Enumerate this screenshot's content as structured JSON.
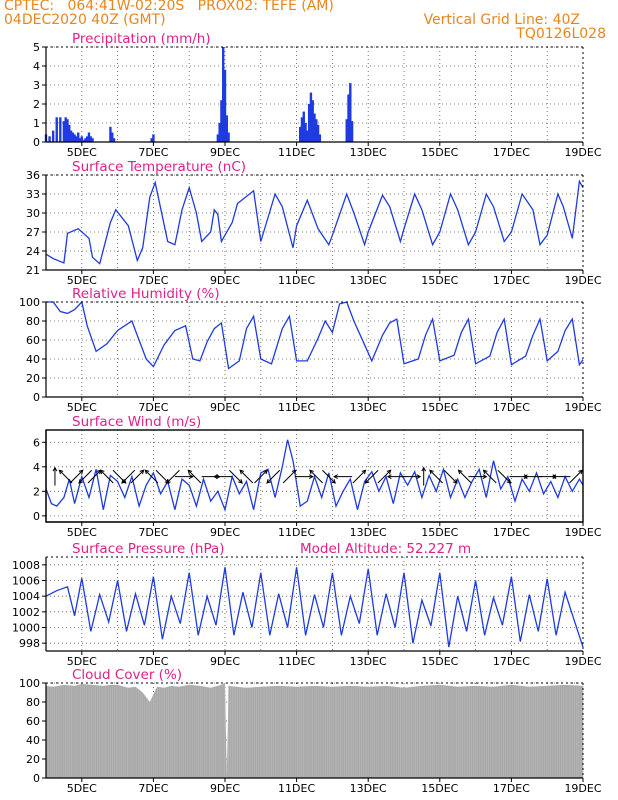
{
  "header": {
    "line1": "CPTEC:   064:41W-02:20S   PROX02: TEFE (AM)",
    "line2": "04DEC2020 40Z (GMT)",
    "grid_note": "Vertical Grid Line: 40Z",
    "code": "TQ0126L028"
  },
  "colors": {
    "header": "#e8861c",
    "title": "#e0218a",
    "line": "#1f3be0",
    "cloud": "#a9a9a9"
  },
  "chart_data": [
    {
      "type": "bar",
      "title": "Precipitation (mm/h)",
      "ylim": [
        0,
        5
      ],
      "yticks": [
        0,
        1,
        2,
        3,
        4,
        5
      ],
      "xticks": [
        "5DEC",
        "7DEC",
        "9DEC",
        "11DEC",
        "13DEC",
        "15DEC",
        "17DEC",
        "19DEC"
      ],
      "grid": true,
      "x": [
        4.0,
        4.1,
        4.2,
        4.3,
        4.4,
        4.5,
        4.55,
        4.6,
        4.65,
        4.7,
        4.75,
        4.8,
        4.85,
        4.9,
        4.95,
        5.0,
        5.05,
        5.1,
        5.15,
        5.2,
        5.25,
        5.3,
        5.8,
        5.85,
        5.9,
        6.95,
        7.0,
        8.8,
        8.85,
        8.9,
        8.95,
        9.0,
        9.05,
        9.1,
        11.1,
        11.15,
        11.2,
        11.25,
        11.3,
        11.35,
        11.4,
        11.45,
        11.5,
        11.55,
        11.6,
        11.65,
        12.4,
        12.45,
        12.5,
        12.55
      ],
      "values": [
        0.4,
        0.3,
        0.6,
        1.3,
        1.3,
        1.1,
        1.3,
        1.2,
        0.9,
        0.6,
        0.5,
        0.4,
        0.3,
        0.5,
        0.2,
        0.3,
        0.1,
        0.2,
        0.3,
        0.5,
        0.3,
        0.2,
        0.8,
        0.5,
        0.2,
        0.2,
        0.4,
        0.4,
        1.0,
        2.2,
        5.0,
        3.8,
        1.4,
        0.5,
        0.8,
        1.3,
        1.6,
        1.0,
        0.6,
        2.0,
        2.6,
        2.2,
        1.5,
        1.2,
        0.9,
        0.4,
        1.2,
        2.5,
        3.1,
        1.1
      ]
    },
    {
      "type": "line",
      "title": "Surface Temperature (nC)",
      "ylim": [
        21,
        36
      ],
      "yticks": [
        21,
        24,
        27,
        30,
        33,
        36
      ],
      "xticks": [
        "5DEC",
        "7DEC",
        "9DEC",
        "11DEC",
        "13DEC",
        "15DEC",
        "17DEC",
        "19DEC"
      ],
      "grid": true,
      "x": [
        4.0,
        4.2,
        4.5,
        4.6,
        4.9,
        5.2,
        5.3,
        5.5,
        5.8,
        5.95,
        6.3,
        6.55,
        6.7,
        6.9,
        7.05,
        7.4,
        7.6,
        7.8,
        8.0,
        8.2,
        8.35,
        8.6,
        8.7,
        8.8,
        8.9,
        9.2,
        9.35,
        9.8,
        10.0,
        10.4,
        10.6,
        10.9,
        11.0,
        11.3,
        11.6,
        11.9,
        12.0,
        12.4,
        12.6,
        12.9,
        13.0,
        13.4,
        13.6,
        13.9,
        14.0,
        14.3,
        14.5,
        14.8,
        15.0,
        15.3,
        15.5,
        15.8,
        16.0,
        16.3,
        16.5,
        16.8,
        17.0,
        17.3,
        17.6,
        17.8,
        18.0,
        18.3,
        18.45,
        18.7,
        18.9,
        19.0
      ],
      "values": [
        23.5,
        22.8,
        22.1,
        26.8,
        27.5,
        26.0,
        23.0,
        22.0,
        28.5,
        30.5,
        28.0,
        22.5,
        24.5,
        32.5,
        34.8,
        25.5,
        25.0,
        30.5,
        34.0,
        30.0,
        25.5,
        27.0,
        30.5,
        29.8,
        25.5,
        28.5,
        31.5,
        33.5,
        25.5,
        33.0,
        31.0,
        24.5,
        28.0,
        32.0,
        27.5,
        25.0,
        26.5,
        33.0,
        30.0,
        25.0,
        27.0,
        32.8,
        31.0,
        25.5,
        27.5,
        33.0,
        30.5,
        25.0,
        27.0,
        33.0,
        30.5,
        25.0,
        27.0,
        33.0,
        31.0,
        25.5,
        27.0,
        33.0,
        30.5,
        25.0,
        26.5,
        33.0,
        31.0,
        26.0,
        35.0,
        34.0
      ],
      "ylabel": ""
    },
    {
      "type": "line",
      "title": "Relative Humidity (%)",
      "ylim": [
        0,
        100
      ],
      "yticks": [
        0,
        20,
        40,
        60,
        80,
        100
      ],
      "xticks": [
        "5DEC",
        "7DEC",
        "9DEC",
        "11DEC",
        "13DEC",
        "15DEC",
        "17DEC",
        "19DEC"
      ],
      "grid": true,
      "x": [
        4.0,
        4.2,
        4.4,
        4.6,
        4.8,
        5.0,
        5.15,
        5.4,
        5.7,
        6.0,
        6.4,
        6.8,
        7.0,
        7.3,
        7.6,
        7.9,
        8.1,
        8.3,
        8.5,
        8.7,
        8.9,
        9.1,
        9.4,
        9.6,
        9.8,
        10.0,
        10.3,
        10.6,
        10.8,
        11.0,
        11.3,
        11.6,
        11.8,
        12.0,
        12.2,
        12.4,
        12.6,
        12.9,
        13.1,
        13.4,
        13.6,
        13.8,
        14.0,
        14.4,
        14.6,
        14.8,
        15.0,
        15.4,
        15.6,
        15.8,
        16.0,
        16.4,
        16.6,
        16.8,
        17.0,
        17.4,
        17.6,
        17.8,
        18.0,
        18.3,
        18.5,
        18.7,
        18.9,
        19.0
      ],
      "values": [
        100,
        100,
        90,
        88,
        92,
        100,
        75,
        48,
        56,
        70,
        80,
        40,
        32,
        55,
        70,
        75,
        40,
        38,
        58,
        72,
        78,
        30,
        38,
        72,
        85,
        40,
        35,
        72,
        85,
        38,
        38,
        62,
        80,
        68,
        98,
        100,
        80,
        55,
        38,
        65,
        78,
        82,
        35,
        40,
        65,
        82,
        38,
        44,
        68,
        82,
        35,
        43,
        68,
        82,
        34,
        43,
        65,
        82,
        38,
        48,
        70,
        82,
        34,
        39
      ],
      "ylabel": ""
    },
    {
      "type": "line",
      "title": "Surface Wind (m/s)",
      "ylim": [
        -0.5,
        7
      ],
      "yticks": [
        0,
        2,
        4,
        6
      ],
      "xticks": [
        "5DEC",
        "7DEC",
        "9DEC",
        "11DEC",
        "13DEC",
        "15DEC",
        "17DEC",
        "19DEC"
      ],
      "grid": true,
      "x": [
        4.0,
        4.15,
        4.3,
        4.5,
        4.65,
        4.8,
        5.0,
        5.2,
        5.4,
        5.6,
        5.8,
        6.0,
        6.2,
        6.4,
        6.6,
        6.8,
        7.0,
        7.2,
        7.4,
        7.6,
        7.8,
        8.0,
        8.2,
        8.4,
        8.6,
        8.8,
        9.0,
        9.2,
        9.4,
        9.6,
        9.8,
        10.0,
        10.2,
        10.4,
        10.6,
        10.75,
        10.9,
        11.1,
        11.3,
        11.5,
        11.7,
        11.9,
        12.1,
        12.3,
        12.5,
        12.7,
        12.9,
        13.1,
        13.3,
        13.5,
        13.7,
        13.9,
        14.1,
        14.3,
        14.5,
        14.7,
        14.9,
        15.1,
        15.3,
        15.5,
        15.7,
        15.9,
        16.1,
        16.3,
        16.5,
        16.7,
        16.9,
        17.1,
        17.3,
        17.5,
        17.7,
        17.9,
        18.1,
        18.3,
        18.5,
        18.7,
        18.9,
        19.0
      ],
      "values": [
        2.2,
        1.0,
        0.8,
        1.5,
        3.0,
        1.0,
        3.2,
        1.5,
        3.8,
        0.5,
        3.3,
        2.8,
        1.5,
        3.2,
        0.8,
        2.5,
        3.5,
        1.8,
        2.8,
        0.5,
        3.0,
        2.5,
        0.8,
        3.0,
        1.2,
        2.0,
        0.5,
        3.2,
        1.8,
        2.8,
        0.5,
        3.5,
        3.8,
        1.5,
        4.0,
        6.2,
        4.5,
        0.8,
        1.2,
        3.2,
        1.5,
        3.5,
        0.8,
        2.0,
        3.0,
        0.5,
        2.8,
        3.6,
        2.0,
        3.2,
        1.0,
        3.5,
        2.5,
        3.6,
        1.5,
        3.3,
        2.0,
        3.8,
        1.5,
        3.0,
        1.5,
        2.8,
        3.8,
        1.5,
        4.5,
        2.2,
        3.2,
        1.2,
        3.0,
        2.0,
        3.5,
        1.8,
        2.8,
        1.5,
        3.2,
        2.0,
        3.0,
        2.5
      ],
      "arrows": [
        [
          4.25,
          0,
          1
        ],
        [
          4.55,
          -1,
          1
        ],
        [
          4.85,
          1,
          1
        ],
        [
          5.1,
          -1,
          -1
        ],
        [
          5.35,
          1,
          1
        ],
        [
          5.7,
          -1,
          1
        ],
        [
          6.05,
          1,
          -1
        ],
        [
          6.3,
          -1,
          -1
        ],
        [
          6.55,
          1,
          1
        ],
        [
          6.95,
          -1,
          1
        ],
        [
          7.25,
          1,
          -1
        ],
        [
          7.55,
          -1,
          -1
        ],
        [
          7.85,
          1,
          0
        ],
        [
          8.15,
          -1,
          1
        ],
        [
          8.6,
          1,
          0
        ],
        [
          8.95,
          -1,
          0
        ],
        [
          9.3,
          1,
          -1
        ],
        [
          9.6,
          -1,
          1
        ],
        [
          10.0,
          1,
          1
        ],
        [
          10.35,
          -1,
          -1
        ],
        [
          10.8,
          1,
          1
        ],
        [
          11.2,
          1,
          0
        ],
        [
          11.55,
          -1,
          1
        ],
        [
          11.9,
          1,
          -1
        ],
        [
          12.3,
          -1,
          0
        ],
        [
          12.75,
          1,
          1
        ],
        [
          13.1,
          -1,
          -1
        ],
        [
          13.45,
          1,
          1
        ],
        [
          13.8,
          -1,
          0
        ],
        [
          14.2,
          1,
          0
        ],
        [
          14.55,
          0,
          1
        ],
        [
          14.9,
          -1,
          1
        ],
        [
          15.3,
          1,
          -1
        ],
        [
          15.7,
          -1,
          1
        ],
        [
          16.05,
          1,
          0
        ],
        [
          16.4,
          -1,
          1
        ],
        [
          16.8,
          1,
          -1
        ],
        [
          17.2,
          1,
          0
        ],
        [
          17.6,
          -1,
          0
        ],
        [
          18.0,
          1,
          0
        ],
        [
          18.4,
          -1,
          0
        ],
        [
          18.8,
          1,
          1
        ]
      ],
      "ylabel": ""
    },
    {
      "type": "line",
      "title": "Surface Pressure (hPa)",
      "annotation": "Model Altitude: 52.227  m",
      "ylim": [
        997,
        1009
      ],
      "yticks": [
        998,
        1000,
        1002,
        1004,
        1006,
        1008
      ],
      "xticks": [
        "5DEC",
        "7DEC",
        "9DEC",
        "11DEC",
        "13DEC",
        "15DEC",
        "17DEC",
        "19DEC"
      ],
      "grid": true,
      "x": [
        4.0,
        4.3,
        4.6,
        4.8,
        5.0,
        5.25,
        5.5,
        5.75,
        6.0,
        6.25,
        6.5,
        6.75,
        7.0,
        7.25,
        7.5,
        7.75,
        8.0,
        8.25,
        8.5,
        8.75,
        9.0,
        9.25,
        9.5,
        9.75,
        10.0,
        10.25,
        10.5,
        10.75,
        11.0,
        11.25,
        11.5,
        11.75,
        12.0,
        12.25,
        12.5,
        12.75,
        13.0,
        13.25,
        13.5,
        13.75,
        14.0,
        14.25,
        14.5,
        14.75,
        15.0,
        15.25,
        15.5,
        15.75,
        16.0,
        16.25,
        16.5,
        16.75,
        17.0,
        17.25,
        17.5,
        17.75,
        18.0,
        18.25,
        18.5,
        18.75,
        19.0
      ],
      "values": [
        1004,
        1004.7,
        1005.2,
        1001.5,
        1006.3,
        999.5,
        1004.2,
        1000.7,
        1006,
        999.5,
        1004.3,
        1000.3,
        1006.5,
        998.5,
        1004,
        1000.5,
        1007,
        999,
        1004,
        1000.3,
        1007.7,
        999,
        1004.5,
        1000,
        1007,
        999,
        1004.3,
        1000,
        1007.7,
        999,
        1004.2,
        1000,
        1007,
        999,
        1004,
        1000.5,
        1007.5,
        999,
        1004.3,
        1000,
        1007,
        998,
        1003.5,
        1000.2,
        1007,
        997.5,
        1004,
        999.5,
        1006,
        999,
        1003.8,
        1000.3,
        1006.5,
        998.2,
        1004.2,
        999.5,
        1006.2,
        999,
        1004.5,
        1001,
        997.5
      ],
      "ylabel": ""
    },
    {
      "type": "area",
      "title": "Cloud Cover (%)",
      "ylim": [
        0,
        100
      ],
      "yticks": [
        0,
        20,
        40,
        60,
        80,
        100
      ],
      "xticks": [
        "5DEC",
        "7DEC",
        "9DEC",
        "11DEC",
        "13DEC",
        "15DEC",
        "17DEC",
        "19DEC"
      ],
      "grid": true,
      "x": [
        4.0,
        4.2,
        4.5,
        4.8,
        5.0,
        5.3,
        5.6,
        5.8,
        6.0,
        6.3,
        6.5,
        6.7,
        6.9,
        7.1,
        7.3,
        7.5,
        7.7,
        8.0,
        8.3,
        8.6,
        8.9,
        9.0,
        9.05,
        9.1,
        9.3,
        9.6,
        10.0,
        10.5,
        11.0,
        11.5,
        12.0,
        12.5,
        13.0,
        13.5,
        14.0,
        14.5,
        15.0,
        15.5,
        16.0,
        16.5,
        17.0,
        17.5,
        18.0,
        18.5,
        19.0
      ],
      "values": [
        97,
        96,
        98,
        97,
        99,
        98,
        97,
        98,
        98,
        95,
        96,
        90,
        80,
        96,
        95,
        97,
        96,
        98,
        97,
        95,
        98,
        100,
        0,
        97,
        96,
        95,
        96,
        97,
        96,
        97,
        96,
        97,
        96,
        97,
        95,
        97,
        98,
        96,
        97,
        96,
        98,
        96,
        97,
        98,
        97
      ],
      "ylabel": ""
    }
  ]
}
